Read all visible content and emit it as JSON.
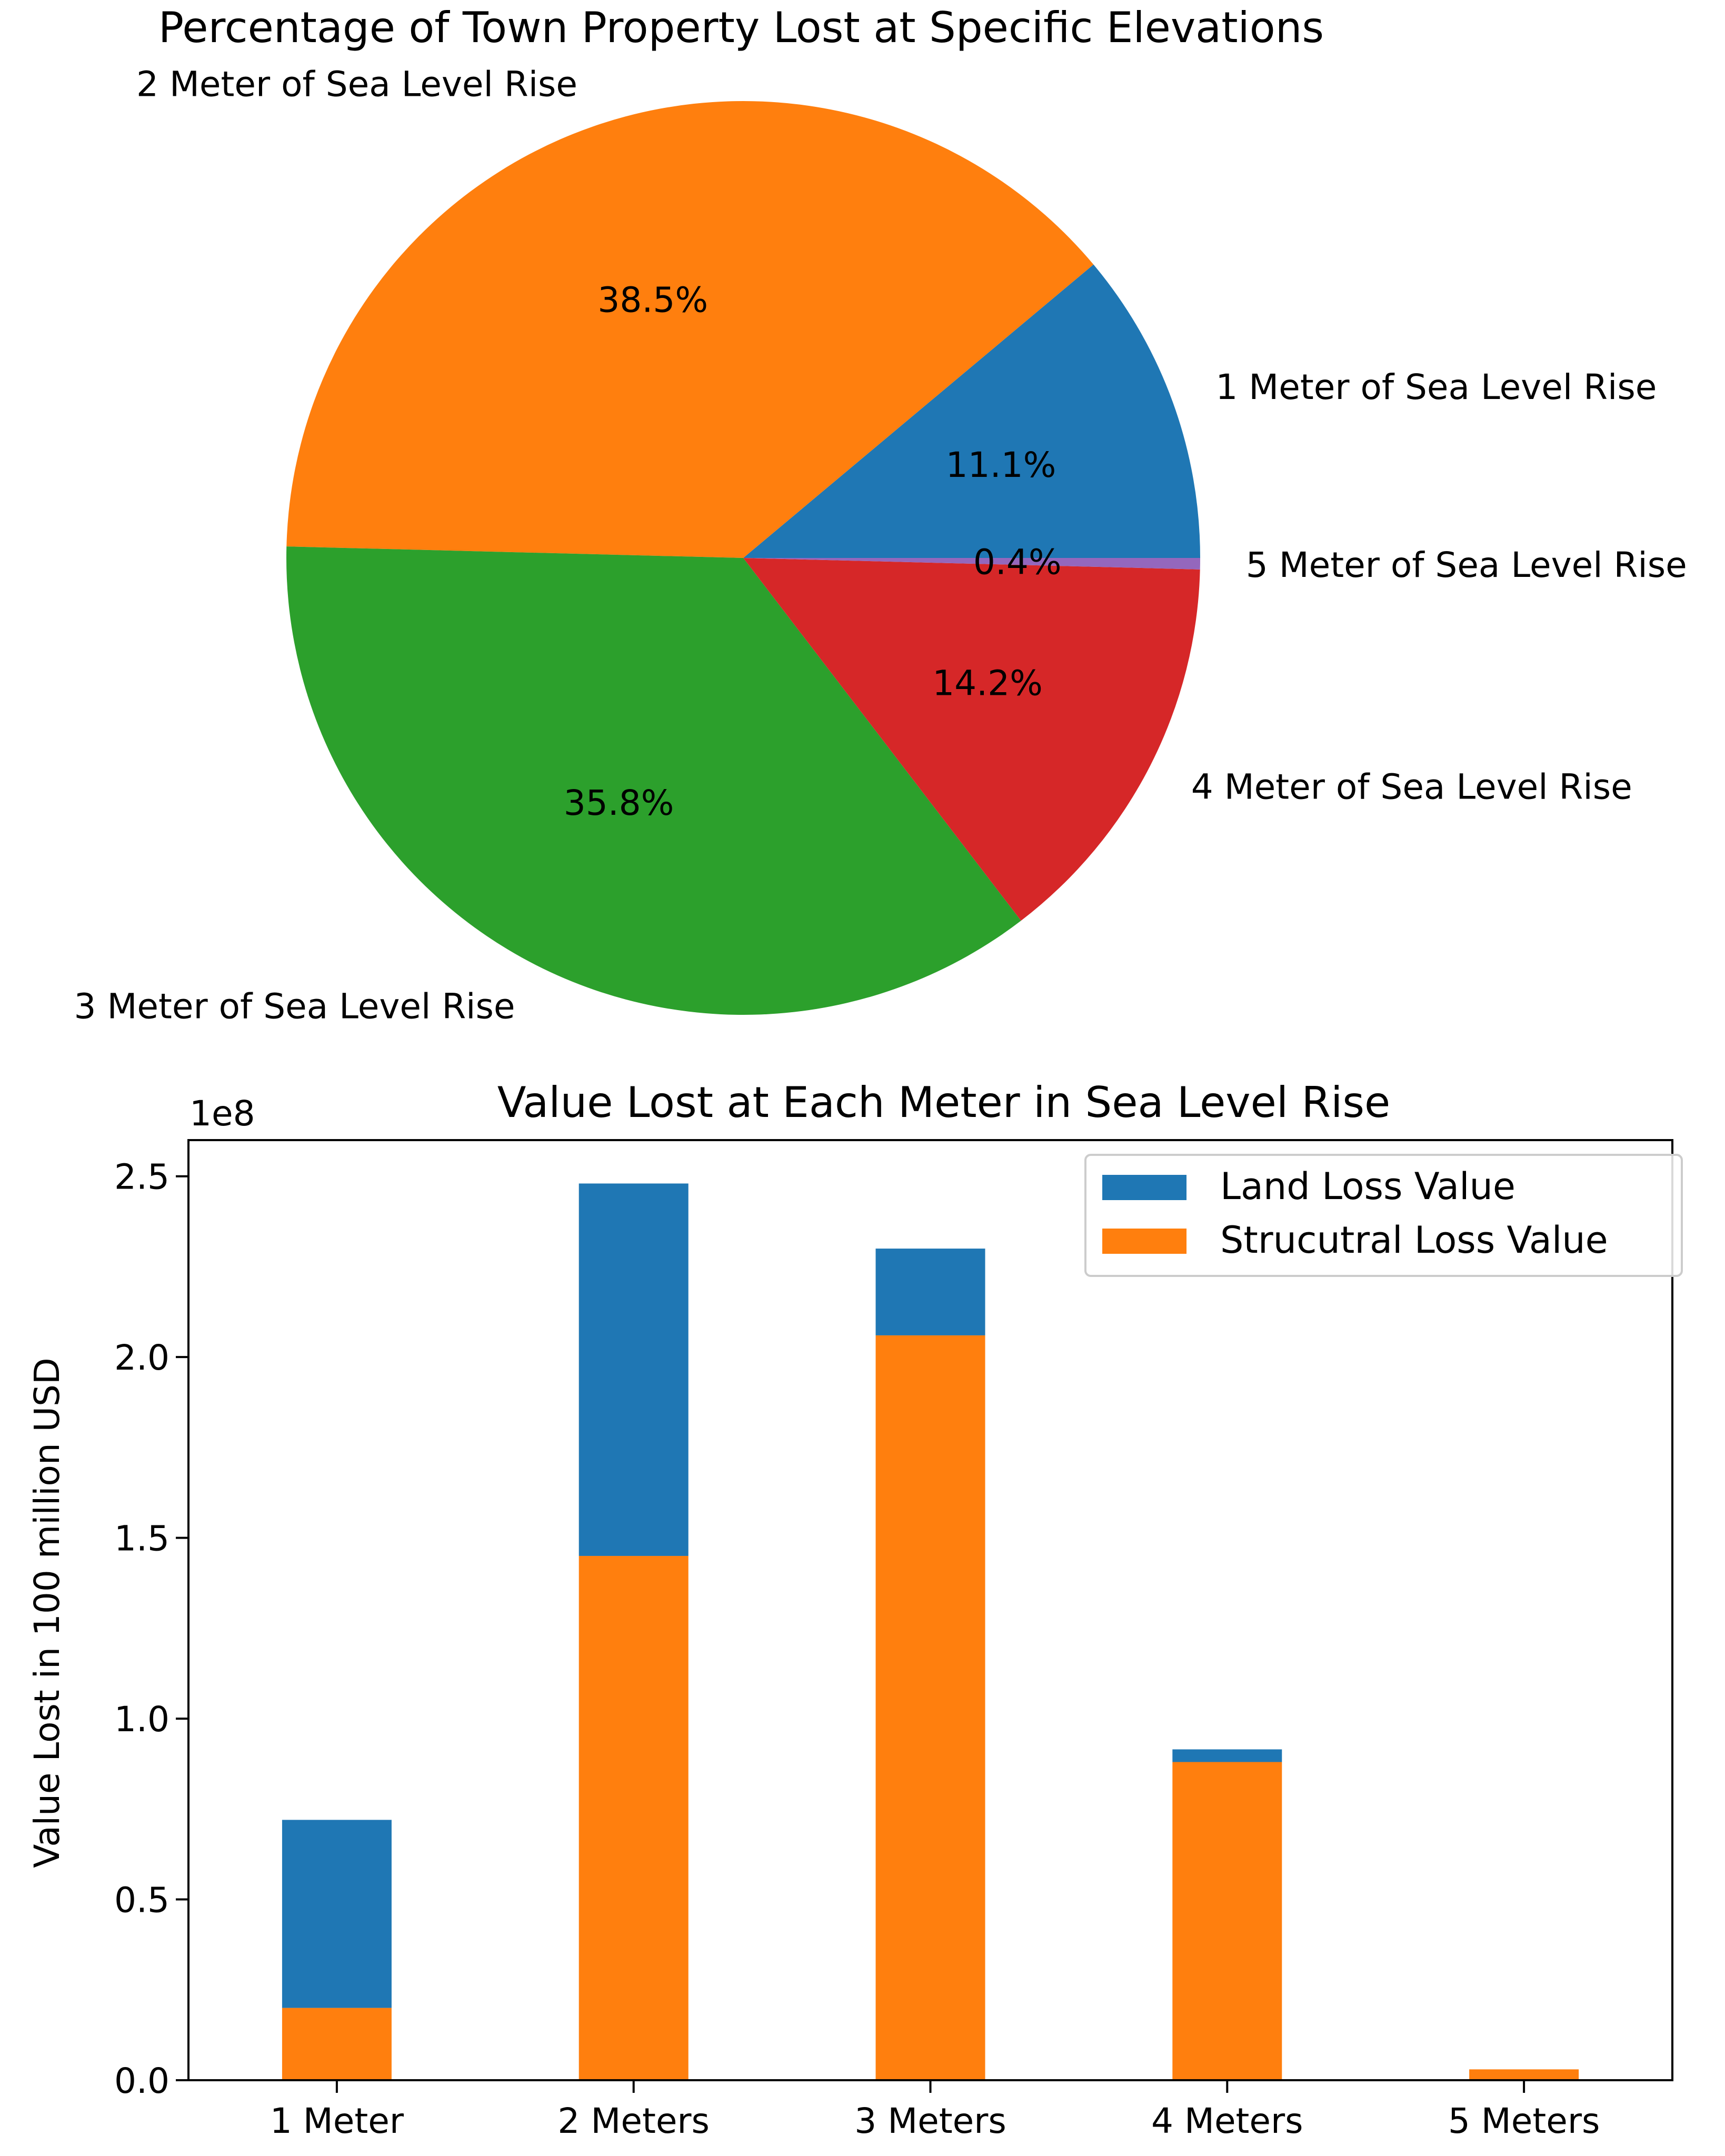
{
  "chart_data": [
    {
      "type": "pie",
      "title": "Percentage of Town Property Lost at Specific Elevations",
      "slices": [
        {
          "label": "1 Meter of Sea Level Rise",
          "value": 11.1,
          "pct_label": "11.1%",
          "color": "#1f77b4"
        },
        {
          "label": "2 Meter of Sea Level Rise",
          "value": 38.5,
          "pct_label": "38.5%",
          "color": "#ff7f0e"
        },
        {
          "label": "3 Meter of Sea Level Rise",
          "value": 35.8,
          "pct_label": "35.8%",
          "color": "#2ca02c"
        },
        {
          "label": "4 Meter of Sea Level Rise",
          "value": 14.2,
          "pct_label": "14.2%",
          "color": "#d62728"
        },
        {
          "label": "5 Meter of Sea Level Rise",
          "value": 0.4,
          "pct_label": "0.4%",
          "color": "#9467bd"
        }
      ],
      "start_angle_deg": 0,
      "direction": "counterclockwise"
    },
    {
      "type": "bar",
      "stacked": true,
      "title": "Value Lost at Each Meter in Sea Level Rise",
      "ylabel": "Value Lost in 100 million USD",
      "xlabel": "",
      "y_offset_label": "1e8",
      "categories": [
        "1 Meter",
        "2 Meters",
        "3 Meters",
        "4 Meters",
        "5 Meters"
      ],
      "series": [
        {
          "name": "Strucutral Loss Value",
          "color": "#ff7f0e",
          "values": [
            0.2,
            1.45,
            2.06,
            0.88,
            0.03
          ]
        },
        {
          "name": "Land Loss Value",
          "color": "#1f77b4",
          "values": [
            0.52,
            1.03,
            0.24,
            0.035,
            0.0
          ]
        }
      ],
      "legend_order": [
        "Land Loss Value",
        "Strucutral Loss Value"
      ],
      "legend_position": "top-right",
      "ylim": [
        0,
        2.6
      ],
      "yticks": [
        0.0,
        0.5,
        1.0,
        1.5,
        2.0,
        2.5
      ],
      "ytick_labels": [
        "0.0",
        "0.5",
        "1.0",
        "1.5",
        "2.0",
        "2.5"
      ],
      "grid": false
    }
  ]
}
